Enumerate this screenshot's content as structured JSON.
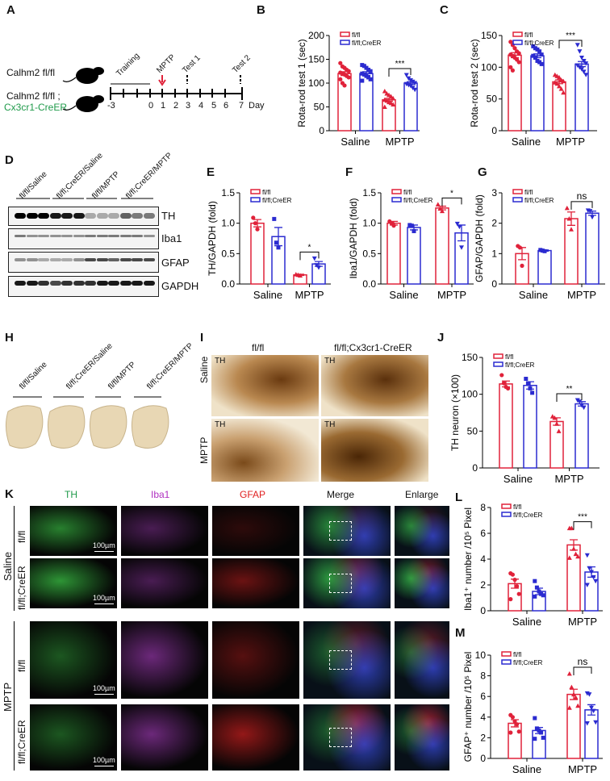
{
  "panels": {
    "A": "A",
    "B": "B",
    "C": "C",
    "D": "D",
    "E": "E",
    "F": "F",
    "G": "G",
    "H": "H",
    "I": "I",
    "J": "J",
    "K": "K",
    "L": "L",
    "M": "M"
  },
  "colors": {
    "flfl": "#e0223a",
    "creer": "#2b2bd0",
    "green_text": "#1f9a4a",
    "th_green": "#3fd24a",
    "iba1_magenta": "#c040d0",
    "gfap_red": "#e02020"
  },
  "timeline": {
    "mouse1": "Calhm2 fl/fl",
    "mouse2_line1": "Calhm2 fl/fl ;",
    "mouse2_line2": "Cx3cr1-CreER",
    "training": "Training",
    "mptp": "MPTP",
    "test1": "Test 1",
    "test2": "Test 2",
    "ticks": [
      "-3",
      "0",
      "1",
      "2",
      "3",
      "4",
      "5",
      "6",
      "7"
    ],
    "day": "Day",
    "mouse_icon": "mouse-icon",
    "arrow_icon": "red-arrow-down-icon"
  },
  "blot": {
    "lanes": [
      "fl/fl/Saline",
      "fl/fl;CreER/Saline",
      "fl/fl/MPTP",
      "fl/fl;CreER/MPTP"
    ],
    "proteins": [
      "TH",
      "Iba1",
      "GFAP",
      "GAPDH"
    ]
  },
  "brain": {
    "labels": [
      "fl/fl/Saline",
      "fl/fl;CreER/Saline",
      "fl/fl/MPTP",
      "fl/fl;CreER/MPTP"
    ]
  },
  "ihc": {
    "col_headers": [
      "fl/fl",
      "fl/fl;Cx3cr1-CreER"
    ],
    "row_labels": [
      "Saline",
      "MPTP"
    ],
    "tile_label": "TH"
  },
  "fluor": {
    "col_headers": [
      "TH",
      "Iba1",
      "GFAP",
      "Merge",
      "Enlarge"
    ],
    "group_labels": [
      "Saline",
      "MPTP"
    ],
    "row_labels": [
      "fl/fl",
      "fl/fl;CreER",
      "fl/fl",
      "fl/fl;CreER"
    ],
    "scale_bar": "100µm"
  },
  "chart_data": [
    {
      "id": "B",
      "type": "bar",
      "ylabel": "Rota-rod test 1 (sec)",
      "ylim": [
        0,
        200
      ],
      "yticks": [
        0,
        50,
        100,
        150,
        200
      ],
      "categories": [
        "Saline",
        "MPTP"
      ],
      "legend": [
        "fl/fl",
        "fl/fl;CreER"
      ],
      "legend_position": "top-left",
      "groups": [
        {
          "category": "Saline",
          "series": "fl/fl",
          "mean": 120,
          "sem": 4,
          "points": [
            142,
            135,
            132,
            128,
            125,
            122,
            120,
            118,
            115,
            112,
            108,
            100,
            95
          ]
        },
        {
          "category": "Saline",
          "series": "fl/fl;CreER",
          "mean": 120,
          "sem": 4,
          "points": [
            138,
            136,
            132,
            128,
            125,
            120,
            118,
            115,
            112,
            108,
            105
          ]
        },
        {
          "category": "MPTP",
          "series": "fl/fl",
          "mean": 65,
          "sem": 3,
          "points": [
            83,
            78,
            75,
            72,
            68,
            65,
            63,
            60,
            58,
            55,
            50
          ]
        },
        {
          "category": "MPTP",
          "series": "fl/fl;CreER",
          "mean": 100,
          "sem": 3,
          "points": [
            117,
            110,
            106,
            103,
            100,
            98,
            96,
            94,
            90,
            86
          ]
        }
      ],
      "significance": "***"
    },
    {
      "id": "C",
      "type": "bar",
      "ylabel": "Rota-rod test 2 (sec)",
      "ylim": [
        0,
        150
      ],
      "yticks": [
        0,
        50,
        100,
        150
      ],
      "categories": [
        "Saline",
        "MPTP"
      ],
      "legend": [
        "fl/fl",
        "fl/fl;CreER"
      ],
      "legend_position": "top-left",
      "groups": [
        {
          "category": "Saline",
          "series": "fl/fl",
          "mean": 119,
          "sem": 4,
          "points": [
            140,
            135,
            130,
            125,
            122,
            120,
            118,
            115,
            112,
            108,
            100,
            95
          ]
        },
        {
          "category": "Saline",
          "series": "fl/fl;CreER",
          "mean": 118,
          "sem": 3,
          "points": [
            133,
            130,
            128,
            125,
            120,
            118,
            115,
            110,
            108,
            105
          ]
        },
        {
          "category": "MPTP",
          "series": "fl/fl",
          "mean": 77,
          "sem": 3,
          "points": [
            88,
            86,
            84,
            80,
            78,
            76,
            74,
            70,
            66,
            60
          ]
        },
        {
          "category": "MPTP",
          "series": "fl/fl;CreER",
          "mean": 105,
          "sem": 4,
          "points": [
            135,
            125,
            115,
            110,
            106,
            103,
            100,
            97,
            93,
            88
          ]
        }
      ],
      "significance": "***"
    },
    {
      "id": "E",
      "type": "bar",
      "ylabel": "TH/GAPDH (fold)",
      "ylim": [
        0,
        1.5
      ],
      "yticks": [
        "0.0",
        "0.5",
        "1.0",
        "1.5"
      ],
      "categories": [
        "Saline",
        "MPTP"
      ],
      "legend": [
        "fl/fl",
        "fl/fl;CreER"
      ],
      "legend_position": "top-left",
      "groups": [
        {
          "category": "Saline",
          "series": "fl/fl",
          "mean": 1.0,
          "sem": 0.06,
          "points": [
            1.09,
            1.0,
            0.9
          ]
        },
        {
          "category": "Saline",
          "series": "fl/fl;CreER",
          "mean": 0.78,
          "sem": 0.15,
          "points": [
            1.07,
            0.68,
            0.6
          ]
        },
        {
          "category": "MPTP",
          "series": "fl/fl",
          "mean": 0.15,
          "sem": 0.01,
          "points": [
            0.16,
            0.15,
            0.14
          ]
        },
        {
          "category": "MPTP",
          "series": "fl/fl;CreER",
          "mean": 0.33,
          "sem": 0.04,
          "points": [
            0.42,
            0.31,
            0.27
          ]
        }
      ],
      "significance": "*"
    },
    {
      "id": "F",
      "type": "bar",
      "ylabel": "Iba1/GAPDH (fold)",
      "ylim": [
        0,
        1.5
      ],
      "yticks": [
        "0.0",
        "0.5",
        "1.0",
        "1.5"
      ],
      "categories": [
        "Saline",
        "MPTP"
      ],
      "legend": [
        "fl/fl",
        "fl/fl;CreER"
      ],
      "legend_position": "top-left",
      "groups": [
        {
          "category": "Saline",
          "series": "fl/fl",
          "mean": 1.0,
          "sem": 0.03,
          "points": [
            1.03,
            1.0,
            0.96
          ]
        },
        {
          "category": "Saline",
          "series": "fl/fl;CreER",
          "mean": 0.93,
          "sem": 0.04,
          "points": [
            0.97,
            0.96,
            0.87
          ]
        },
        {
          "category": "MPTP",
          "series": "fl/fl",
          "mean": 1.25,
          "sem": 0.03,
          "points": [
            1.31,
            1.24,
            1.2
          ]
        },
        {
          "category": "MPTP",
          "series": "fl/fl;CreER",
          "mean": 0.84,
          "sem": 0.13,
          "points": [
            0.99,
            0.94,
            0.6
          ]
        }
      ],
      "significance": "*"
    },
    {
      "id": "G",
      "type": "bar",
      "ylabel": "GFAP/GAPDH (fold)",
      "ylim": [
        0,
        3
      ],
      "yticks": [
        "0",
        "1",
        "2",
        "3"
      ],
      "categories": [
        "Saline",
        "MPTP"
      ],
      "legend": [
        "fl/fl",
        "fl/fl;CreER"
      ],
      "legend_position": "top-left",
      "groups": [
        {
          "category": "Saline",
          "series": "fl/fl",
          "mean": 1.0,
          "sem": 0.2,
          "points": [
            1.25,
            1.2,
            0.6
          ]
        },
        {
          "category": "Saline",
          "series": "fl/fl;CreER",
          "mean": 1.1,
          "sem": 0.02,
          "points": [
            1.12,
            1.1,
            1.08
          ]
        },
        {
          "category": "MPTP",
          "series": "fl/fl",
          "mean": 2.15,
          "sem": 0.22,
          "points": [
            2.5,
            2.15,
            1.8
          ]
        },
        {
          "category": "MPTP",
          "series": "fl/fl;CreER",
          "mean": 2.33,
          "sem": 0.07,
          "points": [
            2.42,
            2.4,
            2.2
          ]
        }
      ],
      "significance": "ns"
    },
    {
      "id": "J",
      "type": "bar",
      "ylabel": "TH neuron (×100)",
      "ylim": [
        0,
        150
      ],
      "yticks": [
        0,
        50,
        100,
        150
      ],
      "categories": [
        "Saline",
        "MPTP"
      ],
      "legend": [
        "fl/fl",
        "fl/fl;CreER"
      ],
      "legend_position": "top-left",
      "groups": [
        {
          "category": "Saline",
          "series": "fl/fl",
          "mean": 114,
          "sem": 4,
          "points": [
            126,
            115,
            110,
            108
          ]
        },
        {
          "category": "Saline",
          "series": "fl/fl;CreER",
          "mean": 112,
          "sem": 5,
          "points": [
            121,
            115,
            108,
            102
          ]
        },
        {
          "category": "MPTP",
          "series": "fl/fl",
          "mean": 63,
          "sem": 5,
          "points": [
            70,
            68,
            60,
            50
          ]
        },
        {
          "category": "MPTP",
          "series": "fl/fl;CreER",
          "mean": 87,
          "sem": 3,
          "points": [
            92,
            90,
            85,
            82
          ]
        }
      ],
      "significance": "**"
    },
    {
      "id": "L",
      "type": "bar",
      "ylabel": "Iba1⁺ number /10⁵ Pixel",
      "ylim": [
        0,
        8
      ],
      "yticks": [
        0,
        2,
        4,
        6,
        8
      ],
      "categories": [
        "Saline",
        "MPTP"
      ],
      "legend": [
        "fl/fl",
        "fl/fl;CreER"
      ],
      "legend_position": "top-left",
      "groups": [
        {
          "category": "Saline",
          "series": "fl/fl",
          "mean": 2.1,
          "sem": 0.35,
          "points": [
            2.9,
            2.8,
            2.4,
            1.9,
            1.3,
            0.9
          ]
        },
        {
          "category": "Saline",
          "series": "fl/fl;CreER",
          "mean": 1.5,
          "sem": 0.25,
          "points": [
            2.3,
            1.8,
            1.5,
            1.3,
            1.2,
            1.1
          ]
        },
        {
          "category": "MPTP",
          "series": "fl/fl",
          "mean": 5.1,
          "sem": 0.4,
          "points": [
            6.4,
            6.4,
            4.8,
            4.4,
            4.2,
            4.1
          ]
        },
        {
          "category": "MPTP",
          "series": "fl/fl;CreER",
          "mean": 3.0,
          "sem": 0.4,
          "points": [
            4.3,
            3.3,
            3.0,
            2.6,
            2.3,
            2.0
          ]
        }
      ],
      "significance": "***"
    },
    {
      "id": "M",
      "type": "bar",
      "ylabel": "GFAP⁺ number /10⁵ Pixel",
      "ylim": [
        0,
        10
      ],
      "yticks": [
        0,
        2,
        4,
        6,
        8,
        10
      ],
      "categories": [
        "Saline",
        "MPTP"
      ],
      "legend": [
        "fl/fl",
        "fl/fl;CreER"
      ],
      "legend_position": "top-left",
      "groups": [
        {
          "category": "Saline",
          "series": "fl/fl",
          "mean": 3.4,
          "sem": 0.35,
          "points": [
            4.2,
            4.0,
            3.6,
            3.3,
            2.6,
            2.5
          ]
        },
        {
          "category": "Saline",
          "series": "fl/fl;CreER",
          "mean": 2.7,
          "sem": 0.3,
          "points": [
            3.9,
            2.9,
            2.7,
            2.5,
            2.0,
            1.9
          ]
        },
        {
          "category": "MPTP",
          "series": "fl/fl",
          "mean": 6.2,
          "sem": 0.5,
          "points": [
            8.2,
            6.9,
            6.2,
            5.9,
            5.1,
            4.9
          ]
        },
        {
          "category": "MPTP",
          "series": "fl/fl;CreER",
          "mean": 4.7,
          "sem": 0.5,
          "points": [
            6.3,
            6.2,
            4.9,
            4.6,
            3.5,
            3.4
          ]
        }
      ],
      "significance": "ns"
    }
  ]
}
